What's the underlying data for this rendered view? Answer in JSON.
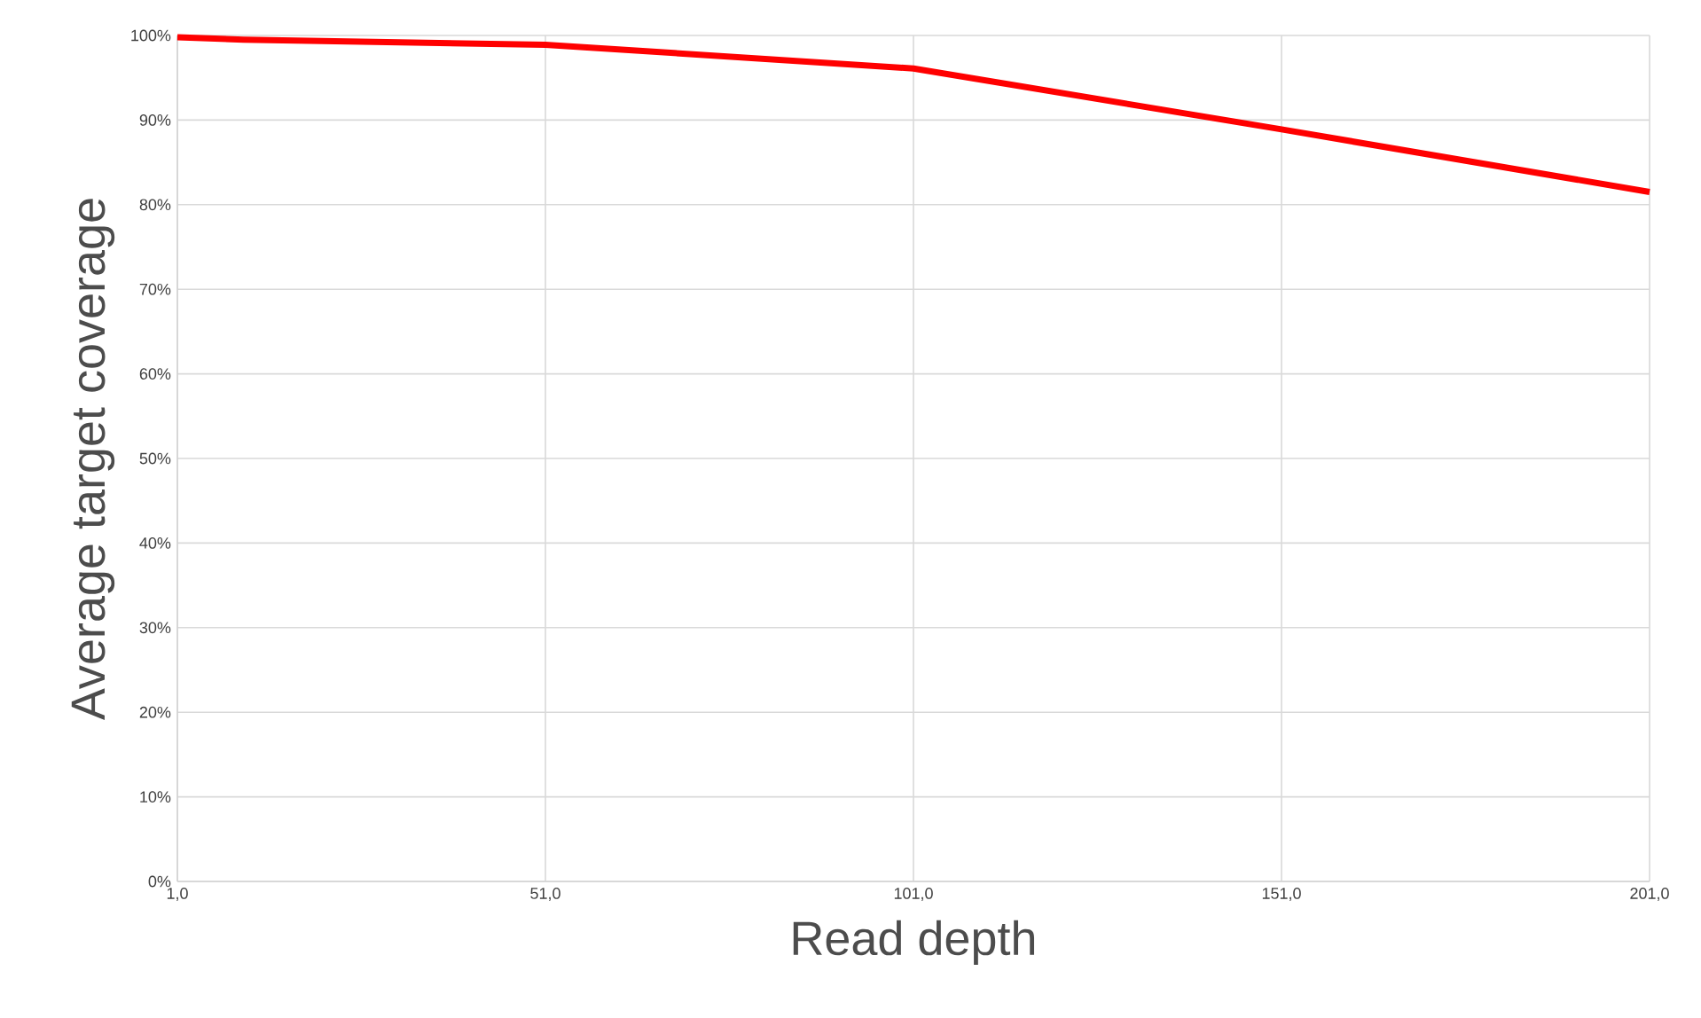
{
  "chart_data": {
    "type": "line",
    "xlabel": "Read depth",
    "ylabel": "Average target coverage",
    "x": [
      1,
      10,
      51,
      101,
      151,
      201
    ],
    "series": [
      {
        "color": "#ff0000",
        "values": [
          99.8,
          99.5,
          98.9,
          96.1,
          88.9,
          81.5
        ]
      }
    ],
    "xlim": [
      1,
      201
    ],
    "xticks": [
      {
        "value": 1,
        "label": "1,0"
      },
      {
        "value": 51,
        "label": "51,0"
      },
      {
        "value": 101,
        "label": "101,0"
      },
      {
        "value": 151,
        "label": "151,0"
      },
      {
        "value": 201,
        "label": "201,0"
      }
    ],
    "ylim": [
      0,
      100
    ],
    "yticks": [
      {
        "value": 0,
        "label": "0%"
      },
      {
        "value": 10,
        "label": "10%"
      },
      {
        "value": 20,
        "label": "20%"
      },
      {
        "value": 30,
        "label": "30%"
      },
      {
        "value": 40,
        "label": "40%"
      },
      {
        "value": 50,
        "label": "50%"
      },
      {
        "value": 60,
        "label": "60%"
      },
      {
        "value": 70,
        "label": "70%"
      },
      {
        "value": 80,
        "label": "80%"
      },
      {
        "value": 90,
        "label": "90%"
      },
      {
        "value": 100,
        "label": "100%"
      }
    ],
    "grid": true,
    "marker": "none",
    "line_style": "solid"
  }
}
